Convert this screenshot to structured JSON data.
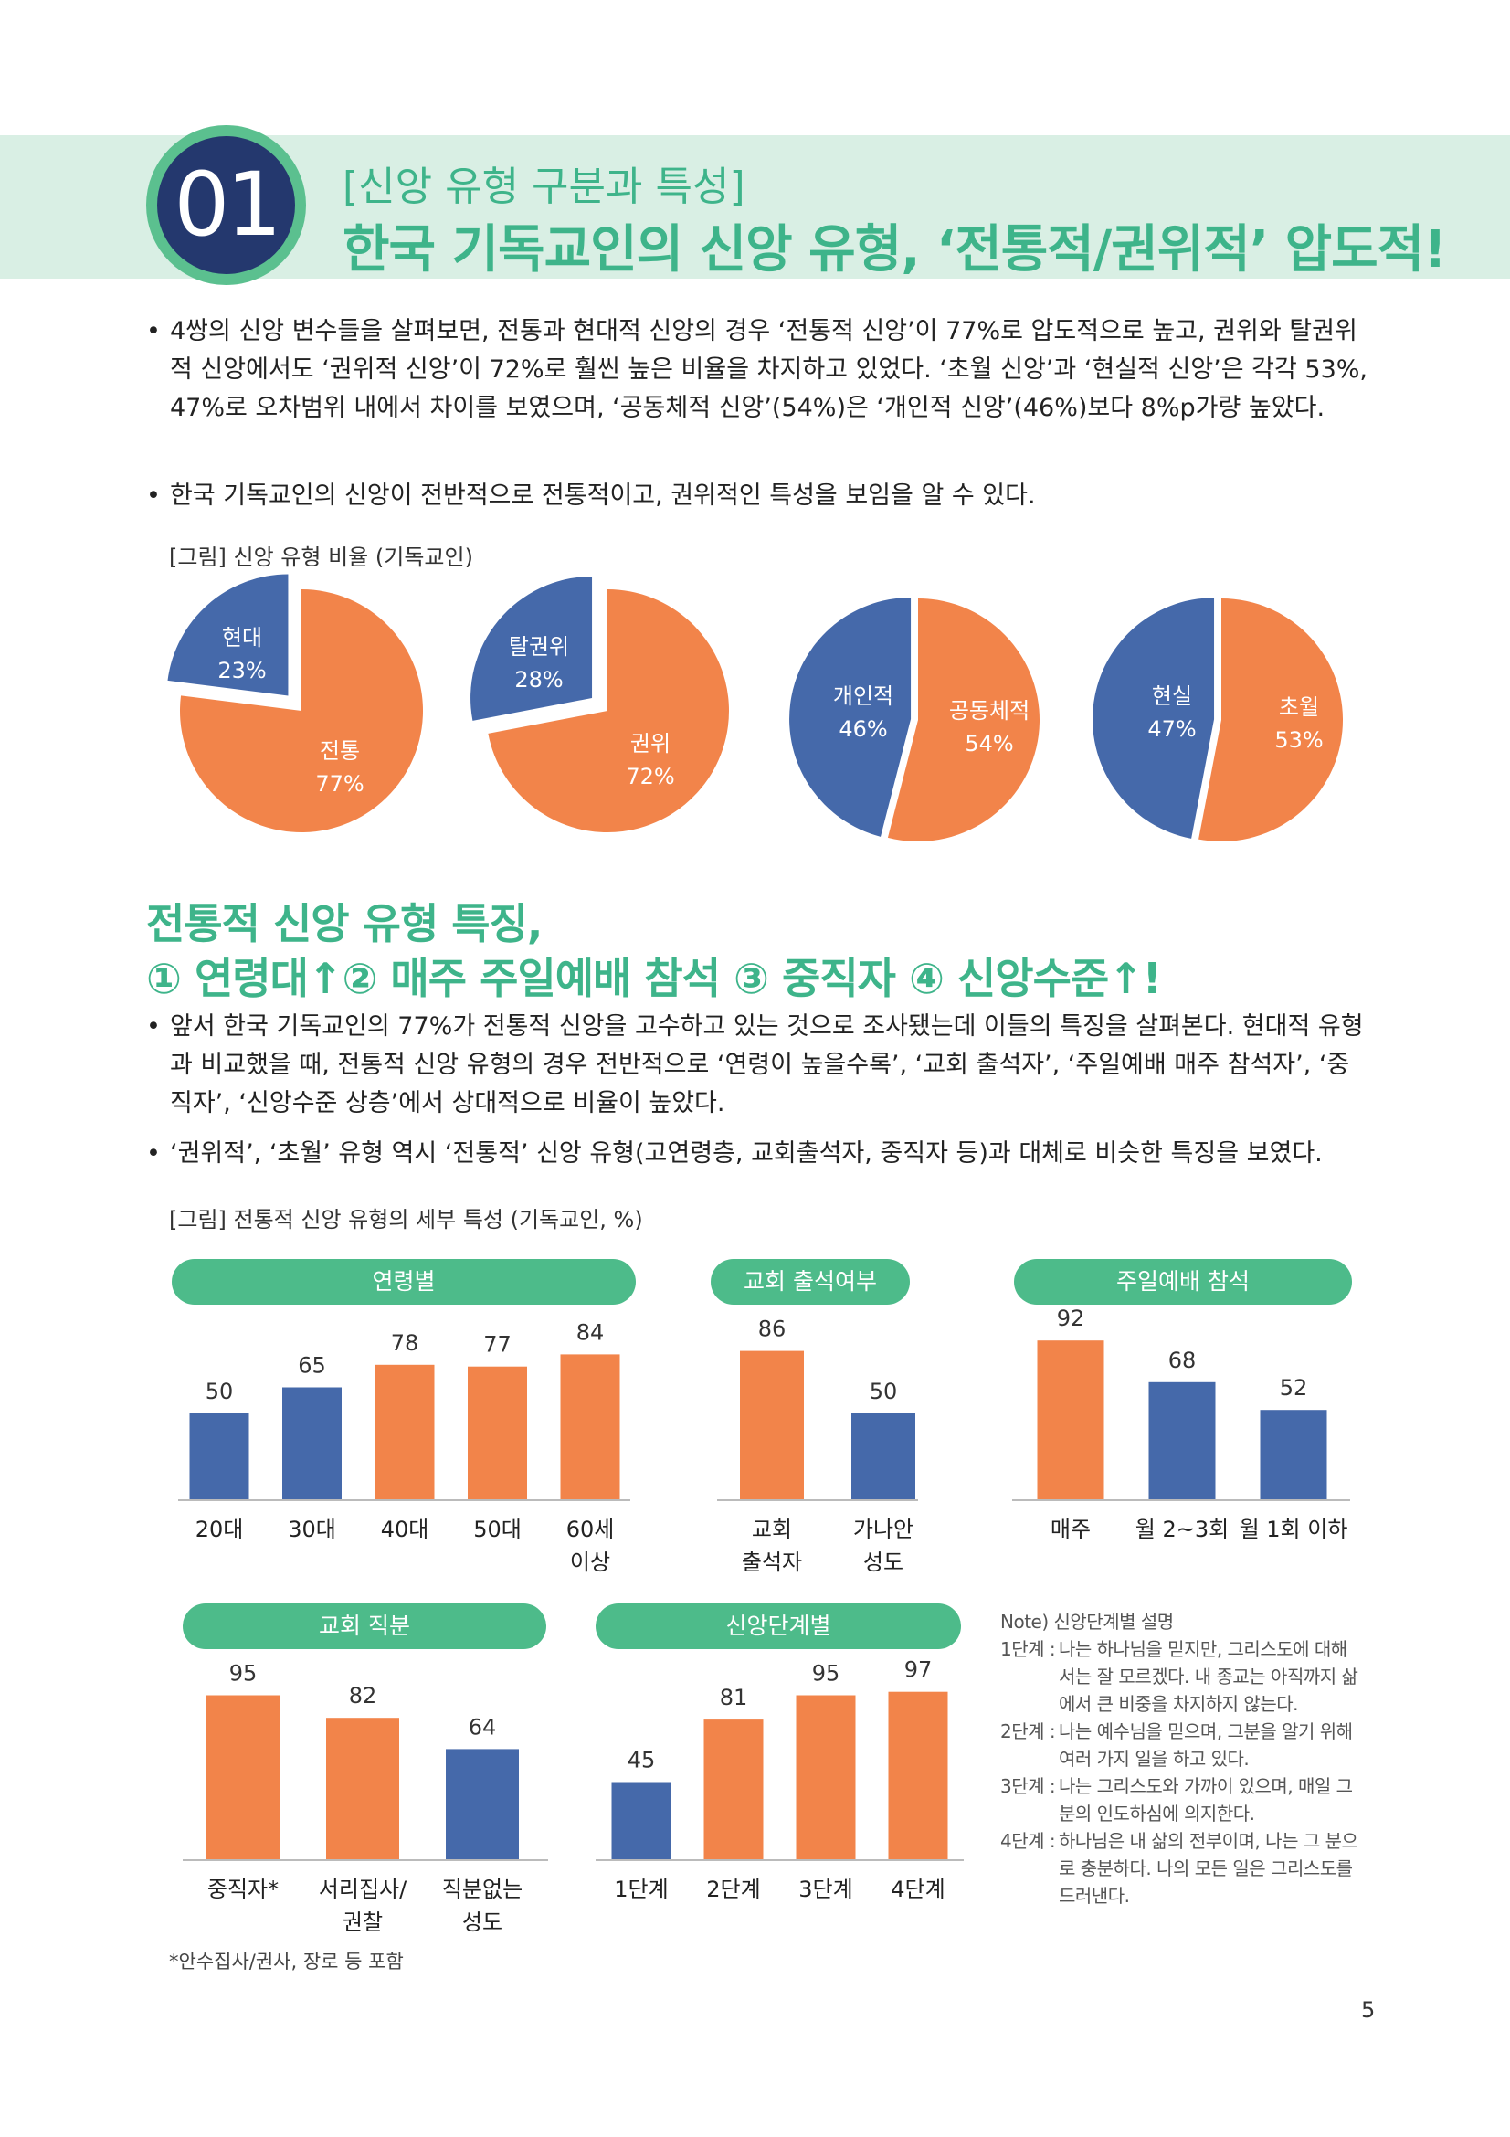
{
  "header": {
    "number": "01",
    "subtitle": "[신앙 유형 구분과 특성]",
    "title": "한국 기독교인의 신앙 유형, ‘전통적/권위적’ 압도적!"
  },
  "bullets_top": [
    "4쌍의 신앙 변수들을 살펴보면, 전통과 현대적 신앙의 경우 ‘전통적 신앙’이 77%로 압도적으로 높고, 권위와 탈권위적 신앙에서도 ‘권위적 신앙’이 72%로 훨씬 높은 비율을 차지하고 있었다. ‘초월 신앙’과 ‘현실적 신앙’은 각각 53%, 47%로 오차범위 내에서 차이를 보였으며, ‘공동체적 신앙’(54%)은 ‘개인적 신앙’(46%)보다 8%p가량 높았다.",
    "한국 기독교인의 신앙이 전반적으로 전통적이고, 권위적인 특성을 보임을 알 수 있다."
  ],
  "pie_caption": "[그림] 신앙 유형 비율 (기독교인)",
  "section2": {
    "title_line1": "전통적 신앙 유형 특징,",
    "title_line2": "① 연령대↑② 매주 주일예배 참석 ③ 중직자 ④ 신앙수준↑!",
    "bullets": [
      "앞서 한국 기독교인의 77%가 전통적 신앙을 고수하고 있는 것으로 조사됐는데 이들의 특징을 살펴본다. 현대적 유형과 비교했을 때, 전통적 신앙 유형의 경우 전반적으로 ‘연령이 높을수록’, ‘교회 출석자’, ‘주일예배 매주 참석자’, ‘중직자’, ‘신앙수준 상층’에서 상대적으로 비율이 높았다.",
      "‘권위적’, ‘초월’ 유형 역시 ‘전통적’ 신앙 유형(고연령층, 교회출석자, 중직자 등)과 대체로 비슷한 특징을 보였다."
    ],
    "bar_caption": "[그림] 전통적 신앙 유형의 세부 특성 (기독교인, %)"
  },
  "colors": {
    "orange": "#f2844a",
    "blue": "#4569aa",
    "green": "#4dbb8a"
  },
  "chart_data": [
    {
      "type": "pie",
      "slices": [
        {
          "label": "현대",
          "value": 23,
          "value_label": "23%",
          "color": "#4569aa"
        },
        {
          "label": "전통",
          "value": 77,
          "value_label": "77%",
          "color": "#f2844a"
        }
      ]
    },
    {
      "type": "pie",
      "slices": [
        {
          "label": "탈권위",
          "value": 28,
          "value_label": "28%",
          "color": "#4569aa"
        },
        {
          "label": "권위",
          "value": 72,
          "value_label": "72%",
          "color": "#f2844a"
        }
      ]
    },
    {
      "type": "pie",
      "slices": [
        {
          "label": "개인적",
          "value": 46,
          "value_label": "46%",
          "color": "#4569aa"
        },
        {
          "label": "공동체적",
          "value": 54,
          "value_label": "54%",
          "color": "#f2844a"
        }
      ]
    },
    {
      "type": "pie",
      "slices": [
        {
          "label": "현실",
          "value": 47,
          "value_label": "47%",
          "color": "#4569aa"
        },
        {
          "label": "초월",
          "value": 53,
          "value_label": "53%",
          "color": "#f2844a"
        }
      ]
    },
    {
      "type": "bar",
      "title": "연령별",
      "categories": [
        [
          "20대"
        ],
        [
          "30대"
        ],
        [
          "40대"
        ],
        [
          "50대"
        ],
        [
          "60세",
          "이상"
        ]
      ],
      "values": [
        50,
        65,
        78,
        77,
        84
      ],
      "colors": [
        "#4569aa",
        "#4569aa",
        "#f2844a",
        "#f2844a",
        "#f2844a"
      ],
      "ylim": [
        0,
        100
      ]
    },
    {
      "type": "bar",
      "title": "교회 출석여부",
      "categories": [
        [
          "교회",
          "출석자"
        ],
        [
          "가나안",
          "성도"
        ]
      ],
      "values": [
        86,
        50
      ],
      "colors": [
        "#f2844a",
        "#4569aa"
      ],
      "ylim": [
        0,
        100
      ]
    },
    {
      "type": "bar",
      "title": "주일예배 참석",
      "categories": [
        [
          "매주"
        ],
        [
          "월 2~3회"
        ],
        [
          "월 1회 이하"
        ]
      ],
      "values": [
        92,
        68,
        52
      ],
      "colors": [
        "#f2844a",
        "#4569aa",
        "#4569aa"
      ],
      "ylim": [
        0,
        100
      ]
    },
    {
      "type": "bar",
      "title": "교회 직분",
      "categories": [
        [
          "중직자*"
        ],
        [
          "서리집사/",
          "권찰"
        ],
        [
          "직분없는",
          "성도"
        ]
      ],
      "values": [
        95,
        82,
        64
      ],
      "colors": [
        "#f2844a",
        "#f2844a",
        "#4569aa"
      ],
      "ylim": [
        0,
        100
      ]
    },
    {
      "type": "bar",
      "title": "신앙단계별",
      "categories": [
        [
          "1단계"
        ],
        [
          "2단계"
        ],
        [
          "3단계"
        ],
        [
          "4단계"
        ]
      ],
      "values": [
        45,
        81,
        95,
        97
      ],
      "colors": [
        "#4569aa",
        "#f2844a",
        "#f2844a",
        "#f2844a"
      ],
      "ylim": [
        0,
        100
      ]
    }
  ],
  "note": {
    "title": "Note) 신앙단계별 설명",
    "items": [
      {
        "label": "1단계 :",
        "lines": [
          "나는 하나님을 믿지만, 그리스도에 대해",
          "서는 잘 모르겠다. 내 종교는 아직까지 삶",
          "에서 큰 비중을 차지하지 않는다."
        ]
      },
      {
        "label": "2단계 :",
        "lines": [
          "나는 예수님을 믿으며, 그분을 알기 위해",
          "여러 가지 일을 하고 있다."
        ]
      },
      {
        "label": "3단계 :",
        "lines": [
          "나는 그리스도와 가까이 있으며, 매일 그",
          "분의 인도하심에 의지한다."
        ]
      },
      {
        "label": "4단계 :",
        "lines": [
          "하나님은 내 삶의 전부이며, 나는 그 분으",
          "로 충분하다. 나의 모든 일은 그리스도를",
          "드러낸다."
        ]
      }
    ]
  },
  "footnote": "*안수집사/권사, 장로 등 포함",
  "page_number": "5"
}
